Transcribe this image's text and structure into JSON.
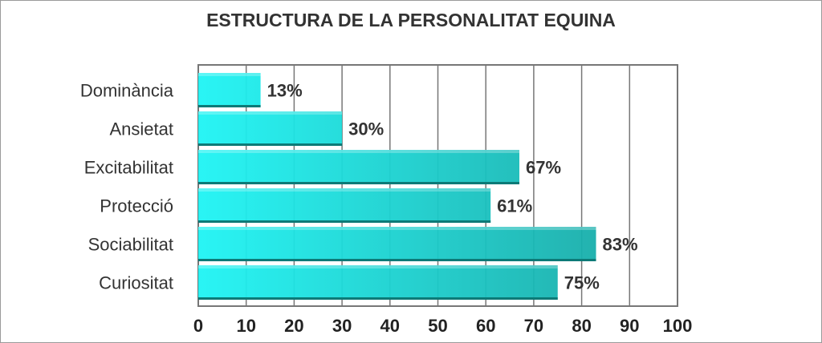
{
  "chart_data": {
    "type": "bar",
    "orientation": "horizontal",
    "title": "ESTRUCTURA DE LA PERSONALITAT EQUINA",
    "categories": [
      "Dominància",
      "Ansietat",
      "Excitabilitat",
      "Protecció",
      "Sociabilitat",
      "Curiositat"
    ],
    "values": [
      13,
      30,
      67,
      61,
      83,
      75
    ],
    "value_labels": [
      "13%",
      "30%",
      "67%",
      "61%",
      "83%",
      "75%"
    ],
    "xlabel": "",
    "ylabel": "",
    "xlim": [
      0,
      100
    ],
    "xticks": [
      "0",
      "10",
      "20",
      "30",
      "40",
      "50",
      "60",
      "70",
      "80",
      "90",
      "100"
    ],
    "grid": true,
    "colors": {
      "bar_light": "#1ef4f4",
      "bar_dark": "#169c98",
      "grid": "#777777",
      "text": "#333333"
    }
  }
}
